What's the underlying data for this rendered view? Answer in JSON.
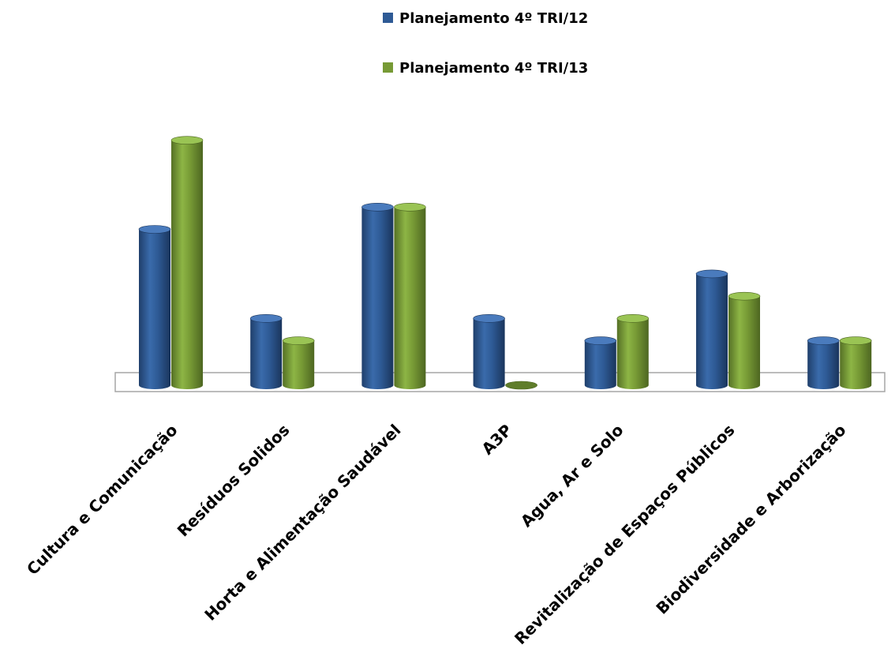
{
  "chart_data": {
    "type": "bar",
    "title": "",
    "xlabel": "",
    "ylabel": "",
    "categories": [
      "Cultura e Comunicação",
      "Resíduos Solidos",
      "Horta e Alimentação Saudável",
      "A3P",
      "Agua, Ar e Solo",
      "Revitalização de Espaços Públicos",
      "Biodiversidade e Arborização"
    ],
    "series": [
      {
        "name": "Planejamento 4º TRI/12",
        "color": "#2e5a95",
        "values": [
          7,
          3,
          8,
          3,
          2,
          5,
          2
        ]
      },
      {
        "name": "Planejamento 4º TRI/13",
        "color": "#779a35",
        "values": [
          11,
          2,
          8,
          0,
          3,
          4,
          2
        ]
      }
    ],
    "ylim": [
      0,
      11.2
    ],
    "grid": false,
    "legend_position": "top-center"
  }
}
